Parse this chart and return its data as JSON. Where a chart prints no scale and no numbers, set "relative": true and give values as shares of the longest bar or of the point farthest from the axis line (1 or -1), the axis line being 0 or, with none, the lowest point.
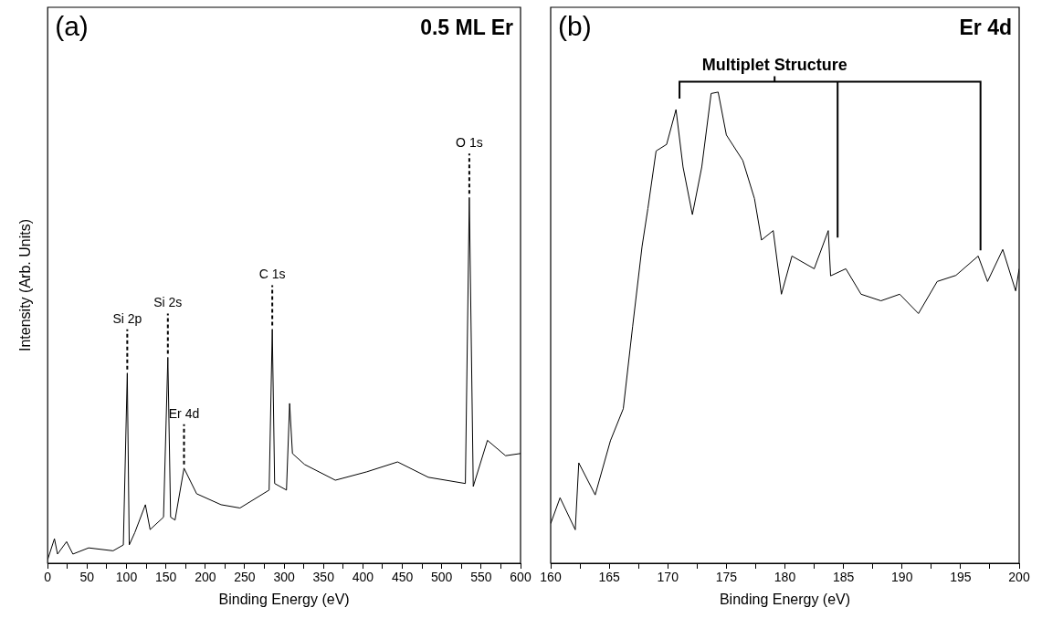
{
  "chart_data": [
    {
      "type": "line",
      "title": "0.5 ML Er",
      "xlabel": "Binding Energy (eV)",
      "ylabel": "Intensity (Arb. Units)",
      "relative": true,
      "tick_labels": "x",
      "grid": false,
      "legend": false,
      "marker": "none",
      "line_style": "solid",
      "xlim": [
        0,
        600
      ],
      "xticks": [
        0,
        {
          "value": 25,
          "label": null
        },
        50,
        {
          "value": 75,
          "label": null
        },
        100,
        {
          "value": 125,
          "label": null
        },
        150,
        {
          "value": 175,
          "label": null
        },
        200,
        {
          "value": 225,
          "label": null
        },
        250,
        {
          "value": 275,
          "label": null
        },
        300,
        {
          "value": 325,
          "label": null
        },
        350,
        {
          "value": 375,
          "label": null
        },
        400,
        {
          "value": 425,
          "label": null
        },
        450,
        {
          "value": 475,
          "label": null
        },
        500,
        {
          "value": 525,
          "label": null
        },
        550,
        {
          "value": 575,
          "label": null
        },
        600
      ],
      "x": [
        0,
        8.6,
        12.5,
        24,
        32,
        52,
        83,
        96,
        101,
        103.5,
        110.6,
        124,
        130,
        147,
        152.5,
        156,
        161.6,
        173,
        189,
        220,
        244,
        281,
        285,
        288,
        303,
        307,
        310.6,
        326,
        365,
        405,
        444,
        483,
        530,
        535,
        540,
        558,
        581,
        600
      ],
      "series": [
        {
          "color": "#000000",
          "values": [
            0.01,
            0.067,
            0.025,
            0.059,
            0.025,
            0.042,
            0.034,
            0.05,
            0.52,
            0.05,
            0.084,
            0.16,
            0.092,
            0.126,
            0.563,
            0.126,
            0.118,
            0.26,
            0.19,
            0.16,
            0.151,
            0.2,
            0.64,
            0.218,
            0.2,
            0.437,
            0.3,
            0.27,
            0.227,
            0.25,
            0.277,
            0.235,
            0.218,
            1.0,
            0.21,
            0.336,
            0.294,
            0.3
          ]
        }
      ],
      "annotations": [
        "(a)",
        {
          "text": "Si 2p",
          "x": 101,
          "y": 0.52
        },
        {
          "text": "Si 2s",
          "x": 152.5,
          "y": 0.563
        },
        {
          "text": "Er 4d",
          "x": 173,
          "y": 0.26
        },
        {
          "text": "C 1s",
          "x": 285,
          "y": 0.64
        },
        {
          "text": "O 1s",
          "x": 535,
          "y": 1.0
        }
      ]
    },
    {
      "type": "line",
      "title": "Er 4d",
      "xlabel": "Binding Energy (eV)",
      "relative": true,
      "tick_labels": "x",
      "grid": false,
      "legend": false,
      "marker": "none",
      "line_style": "solid",
      "xlim": [
        160,
        200
      ],
      "xticks": [
        160,
        {
          "value": 162.5,
          "label": null
        },
        165,
        {
          "value": 167.5,
          "label": null
        },
        170,
        {
          "value": 172.5,
          "label": null
        },
        175,
        {
          "value": 177.5,
          "label": null
        },
        180,
        {
          "value": 182.5,
          "label": null
        },
        185,
        {
          "value": 187.5,
          "label": null
        },
        190,
        {
          "value": 192.5,
          "label": null
        },
        195,
        {
          "value": 197.5,
          "label": null
        },
        200
      ],
      "x": [
        160,
        160.8,
        162.1,
        162.4,
        163.8,
        165.1,
        166.2,
        167,
        167.8,
        168.3,
        169,
        169.9,
        170.7,
        171.3,
        172.1,
        172.9,
        173.7,
        174.3,
        175,
        176.4,
        177.4,
        178,
        179,
        179.7,
        180.6,
        182.5,
        183.7,
        183.9,
        185.2,
        186.5,
        188.2,
        189.8,
        191.4,
        193,
        194.6,
        196.5,
        197.3,
        198.6,
        199.7,
        200
      ],
      "series": [
        {
          "color": "#000000",
          "values": [
            0.084,
            0.139,
            0.071,
            0.213,
            0.145,
            0.26,
            0.328,
            0.503,
            0.672,
            0.753,
            0.875,
            0.889,
            0.963,
            0.841,
            0.74,
            0.841,
            0.997,
            1.0,
            0.909,
            0.855,
            0.774,
            0.686,
            0.706,
            0.571,
            0.652,
            0.625,
            0.706,
            0.61,
            0.625,
            0.571,
            0.557,
            0.571,
            0.53,
            0.598,
            0.611,
            0.652,
            0.598,
            0.666,
            0.578,
            0.625
          ]
        }
      ],
      "annotations": [
        "(b)",
        "Multiplet Structure"
      ]
    }
  ]
}
